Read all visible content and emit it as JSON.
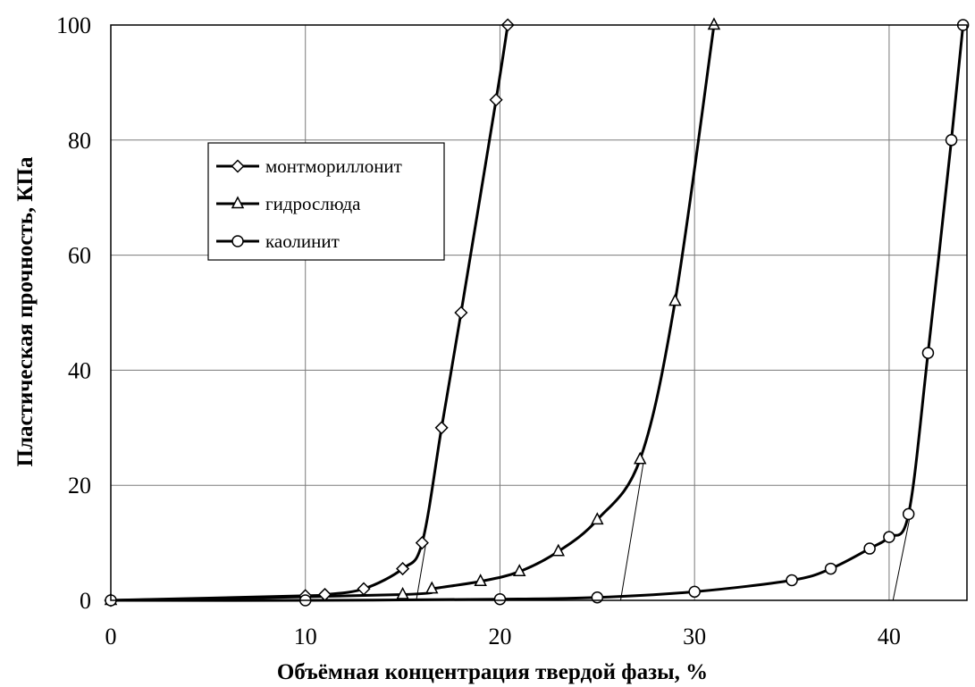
{
  "chart_data": {
    "type": "line",
    "xlabel": "Объёмная концентрация твердой фазы, %",
    "ylabel": "Пластическая прочность, КПа",
    "xlim": [
      0,
      44
    ],
    "ylim": [
      0,
      100
    ],
    "x_ticks": [
      0,
      10,
      20,
      30,
      40
    ],
    "y_ticks": [
      0,
      20,
      40,
      60,
      80,
      100
    ],
    "grid": true,
    "legend_position": "upper-left",
    "series": [
      {
        "name": "монтмориллонит",
        "marker": "diamond",
        "x": [
          0,
          10,
          11,
          13,
          15,
          16,
          17,
          18,
          19.8,
          20.4
        ],
        "y": [
          0,
          0.8,
          1,
          2,
          5.5,
          10,
          30,
          50,
          87,
          100
        ]
      },
      {
        "name": "гидрослюда",
        "marker": "triangle",
        "x": [
          0,
          15,
          16.5,
          19,
          21,
          23,
          25,
          27.2,
          29,
          31
        ],
        "y": [
          0,
          1,
          2,
          3.3,
          5,
          8.5,
          14,
          24.5,
          52,
          100
        ]
      },
      {
        "name": "каолинит",
        "marker": "circle",
        "x": [
          0,
          10,
          20,
          25,
          30,
          35,
          37,
          39,
          40,
          41,
          42,
          43.2,
          43.8
        ],
        "y": [
          0,
          0,
          0.2,
          0.5,
          1.5,
          3.5,
          5.5,
          9,
          11,
          15,
          43,
          80,
          100
        ]
      }
    ],
    "tangent_lines": [
      {
        "from": [
          15.7,
          0
        ],
        "to": [
          16.2,
          10
        ]
      },
      {
        "from": [
          26.2,
          0
        ],
        "to": [
          27.4,
          24.5
        ]
      },
      {
        "from": [
          40.2,
          0
        ],
        "to": [
          41.1,
          15
        ]
      }
    ]
  }
}
